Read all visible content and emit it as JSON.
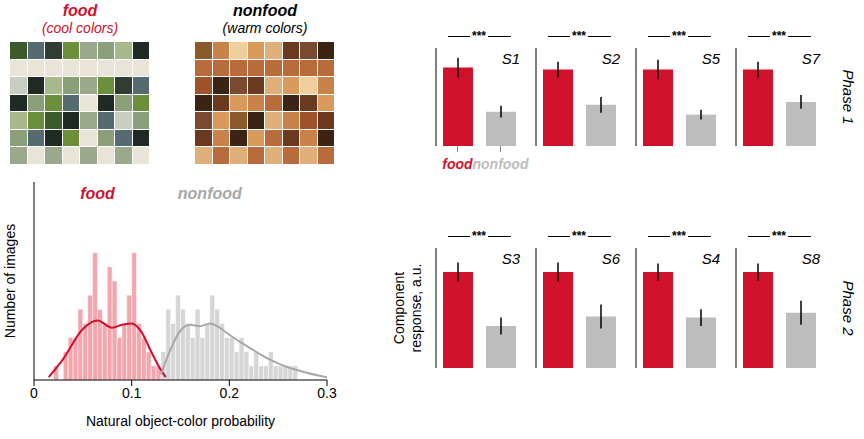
{
  "image_grids": [
    {
      "title": "food",
      "subtitle": "(cool colors)",
      "color": "#d0112b"
    },
    {
      "title": "nonfood",
      "subtitle": "(warm colors)",
      "color": "#000000"
    }
  ],
  "chart_data": [
    {
      "type": "histogram",
      "x_label": "Natural object-color probability",
      "y_label": "Number of images",
      "bins": [
        0.02,
        0.025,
        0.03,
        0.035,
        0.04,
        0.045,
        0.05,
        0.055,
        0.06,
        0.065,
        0.07,
        0.075,
        0.08,
        0.085,
        0.09,
        0.095,
        0.1,
        0.105,
        0.11,
        0.115,
        0.12,
        0.125,
        0.13,
        0.135,
        0.14,
        0.145,
        0.15,
        0.155,
        0.16,
        0.165,
        0.17,
        0.175,
        0.18,
        0.185,
        0.19,
        0.195,
        0.2,
        0.205,
        0.21,
        0.215,
        0.22,
        0.225,
        0.23,
        0.235,
        0.24,
        0.245,
        0.25,
        0.255,
        0.26,
        0.265,
        0.27
      ],
      "series": [
        {
          "name": "food",
          "color": "#f4a6ae",
          "values": [
            1,
            0,
            2,
            3,
            3,
            5,
            4,
            6,
            9,
            5,
            4,
            8,
            7,
            3,
            4,
            6,
            9,
            4,
            3,
            2,
            1,
            1,
            0,
            0,
            0,
            0,
            0,
            0,
            0,
            0,
            0,
            0,
            0,
            0,
            0,
            0,
            0,
            0,
            0,
            0,
            0,
            0,
            0,
            0,
            0,
            0,
            0,
            0,
            0,
            0
          ],
          "density": {
            "color": "#d0112b",
            "x": [
              0.015,
              0.03,
              0.05,
              0.065,
              0.08,
              0.09,
              0.1,
              0.11,
              0.12,
              0.13,
              0.135
            ],
            "values": [
              0.2,
              1.5,
              3.6,
              4.2,
              3.7,
              3.9,
              4,
              3.4,
              2.0,
              0.7,
              0.2
            ]
          }
        },
        {
          "name": "nonfood",
          "color": "#d6d6d6",
          "values": [
            0,
            0,
            0,
            0,
            0,
            0,
            0,
            0,
            0,
            0,
            0,
            0,
            0,
            0,
            0,
            0,
            0,
            0,
            0,
            0,
            0,
            0,
            2,
            5,
            4,
            6,
            5,
            4,
            3,
            5,
            3,
            4,
            6,
            5,
            4,
            3,
            3,
            2,
            3,
            2,
            1,
            2,
            1,
            1,
            2,
            1,
            1,
            1,
            1,
            1
          ],
          "density": {
            "color": "#a8a8a8",
            "x": [
              0.13,
              0.14,
              0.15,
              0.16,
              0.17,
              0.18,
              0.19,
              0.2,
              0.22,
              0.24,
              0.26,
              0.28,
              0.3
            ],
            "values": [
              0.4,
              2.2,
              3.5,
              3.9,
              3.8,
              4,
              3.7,
              3.2,
              2.3,
              1.5,
              0.9,
              0.5,
              0.2
            ]
          }
        }
      ],
      "xlim": [
        0,
        0.3
      ],
      "xticks": [
        0,
        0.1,
        0.2,
        0.3
      ],
      "ylim": [
        0,
        14
      ],
      "yticks": [],
      "tick_labels": "x"
    },
    {
      "type": "bar",
      "group": "Phase 1",
      "title": "S1",
      "annotation": "***",
      "categories": [
        "food",
        "nonfood"
      ],
      "values": [
        0.8,
        0.35
      ],
      "errors": [
        0.1,
        0.06
      ],
      "colors": [
        "#d0112b",
        "#bdbdbd"
      ],
      "ylim": [
        0,
        1
      ],
      "yticks": [],
      "tick_labels": "x"
    },
    {
      "type": "bar",
      "group": "Phase 1",
      "title": "S2",
      "annotation": "***",
      "categories": [
        "food",
        "nonfood"
      ],
      "values": [
        0.78,
        0.42
      ],
      "errors": [
        0.08,
        0.08
      ],
      "colors": [
        "#d0112b",
        "#bdbdbd"
      ],
      "ylim": [
        0,
        1
      ],
      "yticks": [],
      "tick_labels": false
    },
    {
      "type": "bar",
      "group": "Phase 1",
      "title": "S5",
      "annotation": "***",
      "categories": [
        "food",
        "nonfood"
      ],
      "values": [
        0.78,
        0.32
      ],
      "errors": [
        0.1,
        0.05
      ],
      "colors": [
        "#d0112b",
        "#bdbdbd"
      ],
      "ylim": [
        0,
        1
      ],
      "yticks": [],
      "tick_labels": false
    },
    {
      "type": "bar",
      "group": "Phase 1",
      "title": "S7",
      "annotation": "***",
      "categories": [
        "food",
        "nonfood"
      ],
      "values": [
        0.78,
        0.45
      ],
      "errors": [
        0.08,
        0.07
      ],
      "colors": [
        "#d0112b",
        "#bdbdbd"
      ],
      "ylim": [
        0,
        1
      ],
      "yticks": [],
      "tick_labels": false
    },
    {
      "type": "bar",
      "group": "Phase 2",
      "title": "S3",
      "y_label": "Component response, a.u.",
      "annotation": "***",
      "categories": [
        "food",
        "nonfood"
      ],
      "values": [
        0.8,
        0.35
      ],
      "errors": [
        0.08,
        0.07
      ],
      "colors": [
        "#d0112b",
        "#bdbdbd"
      ],
      "ylim": [
        0,
        1
      ],
      "yticks": [],
      "tick_labels": false
    },
    {
      "type": "bar",
      "group": "Phase 2",
      "title": "S6",
      "annotation": "***",
      "categories": [
        "food",
        "nonfood"
      ],
      "values": [
        0.8,
        0.43
      ],
      "errors": [
        0.08,
        0.1
      ],
      "colors": [
        "#d0112b",
        "#bdbdbd"
      ],
      "ylim": [
        0,
        1
      ],
      "yticks": [],
      "tick_labels": false
    },
    {
      "type": "bar",
      "group": "Phase 2",
      "title": "S4",
      "annotation": "***",
      "categories": [
        "food",
        "nonfood"
      ],
      "values": [
        0.8,
        0.42
      ],
      "errors": [
        0.07,
        0.07
      ],
      "colors": [
        "#d0112b",
        "#bdbdbd"
      ],
      "ylim": [
        0,
        1
      ],
      "yticks": [],
      "tick_labels": false
    },
    {
      "type": "bar",
      "group": "Phase 2",
      "title": "S8",
      "annotation": "***",
      "categories": [
        "food",
        "nonfood"
      ],
      "values": [
        0.8,
        0.46
      ],
      "errors": [
        0.07,
        0.1
      ],
      "colors": [
        "#d0112b",
        "#bdbdbd"
      ],
      "ylim": [
        0,
        1
      ],
      "yticks": [],
      "tick_labels": false
    }
  ]
}
